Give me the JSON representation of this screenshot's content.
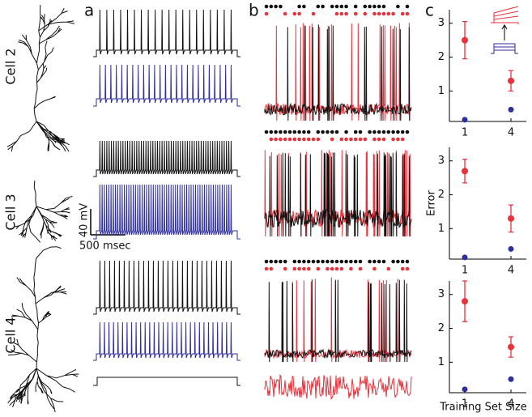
{
  "panel_labels": [
    "a",
    "b",
    "c"
  ],
  "cells": [
    "Cell 2",
    "Cell 3",
    "Cell 4"
  ],
  "scale_bar": {
    "voltage": "40 mV",
    "time": "500 msec"
  },
  "chart_data": [
    {
      "type": "scatter",
      "x": [
        1,
        4
      ],
      "xlim": [
        0,
        5
      ],
      "xticks": [
        1,
        4
      ],
      "ylim": [
        0.1,
        3.4
      ],
      "yticks": [
        1,
        2,
        3
      ],
      "series": [
        {
          "color": "#e8323c",
          "values": [
            2.5,
            1.3
          ],
          "errors": [
            0.55,
            0.3
          ]
        },
        {
          "color": "#2e2e9e",
          "values": [
            0.15,
            0.45
          ]
        }
      ]
    },
    {
      "type": "scatter",
      "x": [
        1,
        4
      ],
      "xlim": [
        0,
        5
      ],
      "xticks": [
        1,
        4
      ],
      "ylim": [
        0.1,
        3.4
      ],
      "yticks": [
        1,
        2,
        3
      ],
      "y_label": "Error",
      "series": [
        {
          "color": "#e8323c",
          "values": [
            2.7,
            1.3
          ],
          "errors": [
            0.35,
            0.4
          ]
        },
        {
          "color": "#2e2e9e",
          "values": [
            0.15,
            0.4
          ]
        }
      ]
    },
    {
      "type": "scatter",
      "x": [
        1,
        4
      ],
      "xlim": [
        0,
        5
      ],
      "xticks": [
        1,
        4
      ],
      "ylim": [
        0.1,
        3.4
      ],
      "yticks": [
        1,
        2,
        3
      ],
      "x_label": "Training Set Size",
      "series": [
        {
          "color": "#e8323c",
          "values": [
            2.8,
            1.45
          ],
          "errors": [
            0.6,
            0.3
          ]
        },
        {
          "color": "#2e2e9e",
          "values": [
            0.2,
            0.5
          ]
        }
      ]
    }
  ]
}
